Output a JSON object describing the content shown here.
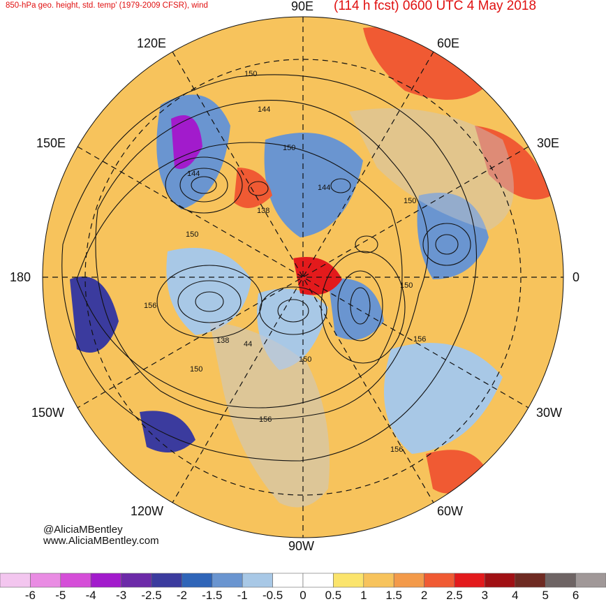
{
  "header": {
    "product": "850-hPa geo. height, std. temp' (1979-2009 CFSR), wind",
    "forecast": "(114 h fcst) 0600 UTC 4 May 2018"
  },
  "longitude_labels": [
    "90E",
    "60E",
    "30E",
    "0",
    "30W",
    "60W",
    "90W",
    "120W",
    "150W",
    "180",
    "150E",
    "120E"
  ],
  "contour_labels": [
    "150",
    "144",
    "150",
    "144",
    "144",
    "150",
    "138",
    "150",
    "150",
    "156",
    "138",
    "44",
    "150",
    "156",
    "156",
    "150",
    "156"
  ],
  "credits": {
    "handle": "@AliciaMBentley",
    "website": "www.AliciaMBentley.com"
  },
  "colorbar": {
    "labels": [
      "-6",
      "-5",
      "-4",
      "-3",
      "-2.5",
      "-2",
      "-1.5",
      "-1",
      "-0.5",
      "0",
      "0.5",
      "1",
      "1.5",
      "2",
      "2.5",
      "3",
      "4",
      "5",
      "6"
    ],
    "colors": [
      "#f3c6ef",
      "#e98ce3",
      "#d54ed8",
      "#a21bcc",
      "#6c2aa8",
      "#3b3b9e",
      "#2f65b8",
      "#6a95d0",
      "#a8c8e6",
      "#ffffff",
      "#ffffff",
      "#fbe46c",
      "#f7c35c",
      "#f39a4a",
      "#f05a33",
      "#e31a1c",
      "#a01014",
      "#6e2a22",
      "#6e6464",
      "#a09898"
    ]
  },
  "colors": {
    "title": "#e01010",
    "land": "#c8c8c8",
    "contour": "#111111"
  }
}
